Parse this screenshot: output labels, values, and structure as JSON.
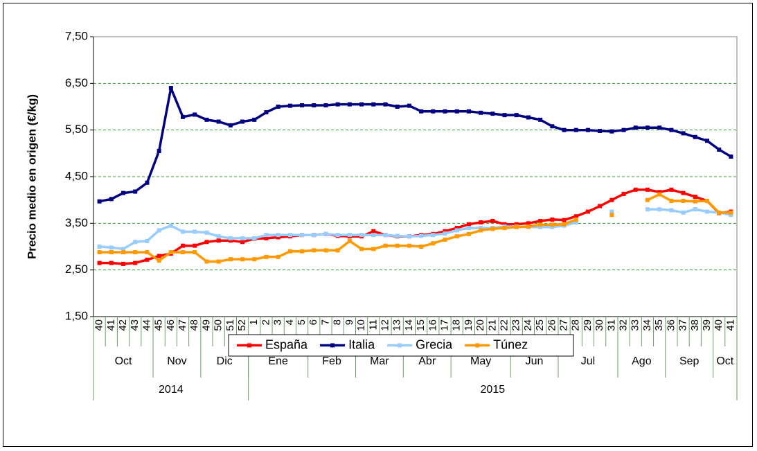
{
  "chart_data": {
    "type": "line",
    "y_label": "Precio medio en origen (€/kg)",
    "categories": [
      "40",
      "41",
      "42",
      "43",
      "44",
      "45",
      "46",
      "47",
      "48",
      "49",
      "50",
      "51",
      "52",
      "1",
      "2",
      "3",
      "4",
      "5",
      "6",
      "7",
      "8",
      "9",
      "10",
      "11",
      "12",
      "13",
      "14",
      "15",
      "16",
      "17",
      "18",
      "19",
      "20",
      "21",
      "22",
      "23",
      "24",
      "25",
      "26",
      "27",
      "28",
      "29",
      "30",
      "31",
      "32",
      "33",
      "34",
      "35",
      "36",
      "37",
      "38",
      "39",
      "40",
      "41"
    ],
    "month_groups": [
      {
        "label": "Oct",
        "span": 5
      },
      {
        "label": "Nov",
        "span": 4
      },
      {
        "label": "Dic",
        "span": 4
      },
      {
        "label": "Ene",
        "span": 5
      },
      {
        "label": "Feb",
        "span": 4
      },
      {
        "label": "Mar",
        "span": 4
      },
      {
        "label": "Abr",
        "span": 4
      },
      {
        "label": "May",
        "span": 5
      },
      {
        "label": "Jun",
        "span": 4
      },
      {
        "label": "Jul",
        "span": 5
      },
      {
        "label": "Ago",
        "span": 4
      },
      {
        "label": "Sep",
        "span": 4
      },
      {
        "label": "Oct",
        "span": 2
      }
    ],
    "year_groups": [
      {
        "label": "2014",
        "span": 13
      },
      {
        "label": "2015",
        "span": 41
      }
    ],
    "ylim": [
      1.5,
      7.5
    ],
    "yticks": [
      {
        "value": 1.5,
        "label": "1,50"
      },
      {
        "value": 2.5,
        "label": "2,50"
      },
      {
        "value": 3.5,
        "label": "3,50"
      },
      {
        "value": 4.5,
        "label": "4,50"
      },
      {
        "value": 5.5,
        "label": "5,50"
      },
      {
        "value": 6.5,
        "label": "6,50"
      },
      {
        "value": 7.5,
        "label": "7,50"
      }
    ],
    "grid": true,
    "legend": "bottom",
    "series": [
      {
        "name": "España",
        "color": "#ff0000",
        "values": [
          2.65,
          2.65,
          2.63,
          2.65,
          2.72,
          2.8,
          2.85,
          3.02,
          3.02,
          3.1,
          3.13,
          3.13,
          3.1,
          3.17,
          3.18,
          3.2,
          3.22,
          3.25,
          3.25,
          3.27,
          3.23,
          3.22,
          3.22,
          3.33,
          3.25,
          3.22,
          3.22,
          3.25,
          3.27,
          3.33,
          3.4,
          3.48,
          3.52,
          3.55,
          3.48,
          3.48,
          3.5,
          3.55,
          3.58,
          3.57,
          3.65,
          3.75,
          3.87,
          4.0,
          4.13,
          4.22,
          4.22,
          4.17,
          4.22,
          4.15,
          4.07,
          3.98,
          3.72,
          3.75
        ]
      },
      {
        "name": "Italia",
        "color": "#000080",
        "values": [
          3.97,
          4.02,
          4.15,
          4.18,
          4.37,
          5.05,
          6.4,
          5.78,
          5.83,
          5.72,
          5.68,
          5.6,
          5.68,
          5.72,
          5.88,
          6.0,
          6.02,
          6.03,
          6.03,
          6.03,
          6.05,
          6.05,
          6.05,
          6.05,
          6.05,
          6.0,
          6.02,
          5.9,
          5.9,
          5.9,
          5.9,
          5.9,
          5.87,
          5.85,
          5.82,
          5.82,
          5.77,
          5.72,
          5.58,
          5.5,
          5.5,
          5.5,
          5.48,
          5.47,
          5.5,
          5.55,
          5.55,
          5.55,
          5.5,
          5.43,
          5.35,
          5.27,
          5.08,
          4.93
        ]
      },
      {
        "name": "Grecia",
        "color": "#99ccff",
        "values": [
          3.0,
          2.98,
          2.95,
          3.1,
          3.12,
          3.35,
          3.45,
          3.32,
          3.32,
          3.3,
          3.22,
          3.18,
          3.18,
          3.18,
          3.25,
          3.25,
          3.25,
          3.25,
          3.25,
          3.27,
          3.25,
          3.25,
          3.25,
          3.25,
          3.25,
          3.23,
          3.22,
          3.23,
          3.25,
          3.28,
          3.35,
          3.4,
          3.4,
          3.4,
          3.43,
          3.43,
          3.42,
          3.42,
          3.42,
          3.45,
          3.52,
          null,
          null,
          3.75,
          null,
          null,
          3.8,
          3.8,
          3.78,
          3.73,
          3.8,
          3.75,
          3.73,
          3.68
        ]
      },
      {
        "name": "Túnez",
        "color": "#ff9900",
        "values": [
          2.88,
          2.88,
          2.88,
          2.88,
          2.88,
          2.7,
          2.88,
          2.88,
          2.88,
          2.68,
          2.68,
          2.73,
          2.73,
          2.73,
          2.78,
          2.78,
          2.9,
          2.9,
          2.92,
          2.92,
          2.92,
          3.12,
          2.95,
          2.95,
          3.02,
          3.02,
          3.02,
          3.0,
          3.07,
          3.15,
          3.22,
          3.27,
          3.35,
          3.38,
          3.4,
          3.42,
          3.43,
          3.47,
          3.47,
          3.48,
          3.58,
          null,
          null,
          3.68,
          null,
          null,
          4.0,
          4.12,
          3.98,
          3.98,
          3.97,
          3.98,
          3.73,
          3.73
        ]
      }
    ]
  }
}
